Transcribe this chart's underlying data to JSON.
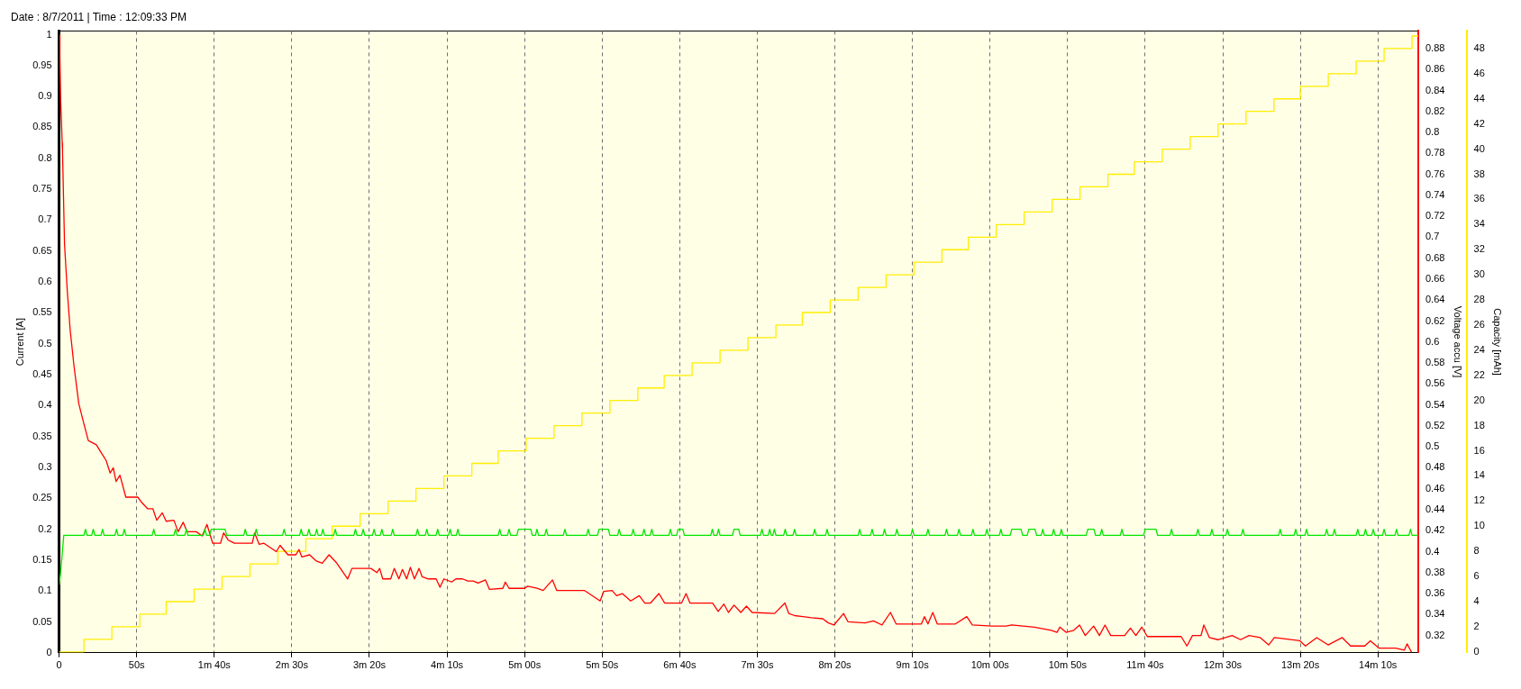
{
  "chart_data": {
    "type": "line",
    "title": "Date : 8/7/2011 | Time : 12:09:33 PM",
    "ylabel": "Current [A]",
    "y2label": "Voltage accu [V]",
    "y3label": "Capacity [mAh]",
    "xlim": [
      0,
      876
    ],
    "xticks": [
      {
        "value": 0,
        "label": "0"
      },
      {
        "value": 50,
        "label": "50s"
      },
      {
        "value": 100,
        "label": "1m 40s"
      },
      {
        "value": 150,
        "label": "2m 30s"
      },
      {
        "value": 200,
        "label": "3m 20s"
      },
      {
        "value": 250,
        "label": "4m 10s"
      },
      {
        "value": 300,
        "label": "5m 00s"
      },
      {
        "value": 350,
        "label": "5m 50s"
      },
      {
        "value": 400,
        "label": "6m 40s"
      },
      {
        "value": 450,
        "label": "7m 30s"
      },
      {
        "value": 500,
        "label": "8m 20s"
      },
      {
        "value": 550,
        "label": "9m 10s"
      },
      {
        "value": 600,
        "label": "10m 00s"
      },
      {
        "value": 650,
        "label": "10m 50s"
      },
      {
        "value": 700,
        "label": "11m 40s"
      },
      {
        "value": 750,
        "label": "12m 30s"
      },
      {
        "value": 800,
        "label": "13m 20s"
      },
      {
        "value": 850,
        "label": "14m 10s"
      }
    ],
    "ylim": [
      0,
      1.006
    ],
    "yticks": [
      0,
      0.05,
      0.1,
      0.15,
      0.2,
      0.25,
      0.3,
      0.35,
      0.4,
      0.45,
      0.5,
      0.55,
      0.6,
      0.65,
      0.7,
      0.75,
      0.8,
      0.85,
      0.9,
      0.95,
      1
    ],
    "y2lim": [
      0.3035,
      0.8968
    ],
    "y2ticks": [
      0.32,
      0.34,
      0.36,
      0.38,
      0.4,
      0.42,
      0.44,
      0.46,
      0.48,
      0.5,
      0.52,
      0.54,
      0.56,
      0.58,
      0.6,
      0.62,
      0.64,
      0.66,
      0.68,
      0.7,
      0.72,
      0.74,
      0.76,
      0.78,
      0.8,
      0.82,
      0.84,
      0.86,
      0.88
    ],
    "y3lim": [
      -0.07,
      49.4
    ],
    "y3ticks": [
      0,
      2,
      4,
      6,
      8,
      10,
      12,
      14,
      16,
      18,
      20,
      22,
      24,
      26,
      28,
      30,
      32,
      34,
      36,
      38,
      40,
      42,
      44,
      46,
      48
    ],
    "grid": "x",
    "marker": "none",
    "line_style": "solid",
    "series": [
      {
        "type": "line",
        "color": "#00e600",
        "x": [
          0,
          1,
          3,
          16,
          17,
          18,
          21,
          22,
          23,
          27,
          28,
          29,
          36,
          37,
          38,
          41,
          42,
          43,
          60,
          61,
          62,
          74,
          75,
          76,
          81,
          82,
          83,
          93,
          94,
          95,
          97,
          98,
          107,
          108,
          119,
          120,
          121,
          126,
          127,
          128,
          144,
          145,
          146,
          155,
          156,
          157,
          160,
          161,
          162,
          165,
          166,
          167,
          169,
          170,
          171,
          177,
          178,
          179,
          190,
          191,
          192,
          195,
          196,
          197,
          202,
          203,
          204,
          207,
          208,
          209,
          214,
          215,
          216,
          230,
          231,
          232,
          236,
          237,
          238,
          243,
          244,
          245,
          251,
          252,
          253,
          256,
          257,
          258,
          283,
          284,
          285,
          289,
          290,
          291,
          295,
          296,
          304,
          305,
          307,
          308,
          309,
          313,
          314,
          315,
          325,
          326,
          327,
          340,
          341,
          342,
          347,
          348,
          354,
          355,
          360,
          361,
          362,
          369,
          370,
          371,
          376,
          377,
          378,
          381,
          382,
          383,
          393,
          394,
          395,
          398,
          399,
          402,
          403,
          420,
          421,
          422,
          424,
          425,
          426,
          434,
          435,
          438,
          439,
          452,
          453,
          454,
          457,
          458,
          459,
          460,
          461,
          462,
          467,
          468,
          469,
          473,
          474,
          475,
          486,
          487,
          488,
          494,
          495,
          496,
          515,
          516,
          517,
          523,
          524,
          525,
          531,
          532,
          533,
          539,
          540,
          541,
          549,
          550,
          551,
          559,
          560,
          561,
          571,
          572,
          573,
          579,
          580,
          581,
          588,
          589,
          590,
          597,
          598,
          599,
          606,
          607,
          608,
          613,
          614,
          620,
          621,
          624,
          625,
          629,
          630,
          633,
          634,
          635,
          640,
          641,
          642,
          645,
          646,
          647,
          662,
          663,
          667,
          668,
          671,
          672,
          673,
          684,
          685,
          686,
          699,
          700,
          707,
          708,
          716,
          717,
          718,
          733,
          734,
          735,
          742,
          743,
          744,
          752,
          753,
          754,
          762,
          763,
          764,
          786,
          787,
          788,
          796,
          797,
          798,
          803,
          804,
          805,
          816,
          817,
          818,
          821,
          822,
          823,
          836,
          837,
          838,
          841,
          842,
          843,
          846,
          847,
          848,
          853,
          854,
          855,
          861,
          862,
          863,
          870,
          871,
          872,
          876
        ],
        "values": [
          0.11,
          0.13,
          0.19,
          0.19,
          0.2,
          0.19,
          0.19,
          0.2,
          0.19,
          0.19,
          0.2,
          0.19,
          0.19,
          0.2,
          0.19,
          0.19,
          0.2,
          0.19,
          0.19,
          0.2,
          0.19,
          0.19,
          0.2,
          0.19,
          0.19,
          0.2,
          0.19,
          0.19,
          0.2,
          0.19,
          0.19,
          0.2,
          0.2,
          0.19,
          0.19,
          0.2,
          0.19,
          0.19,
          0.2,
          0.19,
          0.19,
          0.2,
          0.19,
          0.19,
          0.2,
          0.19,
          0.19,
          0.2,
          0.19,
          0.19,
          0.2,
          0.19,
          0.19,
          0.2,
          0.19,
          0.19,
          0.2,
          0.19,
          0.19,
          0.2,
          0.19,
          0.19,
          0.2,
          0.19,
          0.19,
          0.2,
          0.19,
          0.19,
          0.2,
          0.19,
          0.19,
          0.2,
          0.19,
          0.19,
          0.2,
          0.19,
          0.19,
          0.2,
          0.19,
          0.19,
          0.2,
          0.19,
          0.19,
          0.2,
          0.19,
          0.19,
          0.2,
          0.19,
          0.19,
          0.2,
          0.19,
          0.19,
          0.2,
          0.19,
          0.19,
          0.2,
          0.2,
          0.19,
          0.19,
          0.2,
          0.19,
          0.19,
          0.2,
          0.19,
          0.19,
          0.2,
          0.19,
          0.19,
          0.2,
          0.19,
          0.19,
          0.2,
          0.2,
          0.19,
          0.19,
          0.2,
          0.19,
          0.19,
          0.2,
          0.19,
          0.19,
          0.2,
          0.19,
          0.19,
          0.2,
          0.19,
          0.19,
          0.2,
          0.19,
          0.19,
          0.2,
          0.2,
          0.19,
          0.19,
          0.2,
          0.19,
          0.19,
          0.2,
          0.19,
          0.19,
          0.2,
          0.2,
          0.19,
          0.19,
          0.2,
          0.19,
          0.19,
          0.2,
          0.19,
          0.19,
          0.2,
          0.19,
          0.19,
          0.2,
          0.19,
          0.19,
          0.2,
          0.19,
          0.19,
          0.2,
          0.19,
          0.19,
          0.2,
          0.19,
          0.19,
          0.2,
          0.19,
          0.19,
          0.2,
          0.19,
          0.19,
          0.2,
          0.19,
          0.19,
          0.2,
          0.19,
          0.19,
          0.2,
          0.19,
          0.19,
          0.2,
          0.19,
          0.19,
          0.2,
          0.19,
          0.19,
          0.2,
          0.19,
          0.19,
          0.2,
          0.19,
          0.19,
          0.2,
          0.19,
          0.19,
          0.2,
          0.19,
          0.19,
          0.2,
          0.2,
          0.19,
          0.19,
          0.2,
          0.2,
          0.19,
          0.19,
          0.2,
          0.19,
          0.19,
          0.2,
          0.19,
          0.19,
          0.2,
          0.19,
          0.19,
          0.2,
          0.2,
          0.19,
          0.19,
          0.2,
          0.19,
          0.19,
          0.2,
          0.19,
          0.19,
          0.2,
          0.2,
          0.19,
          0.19,
          0.2,
          0.19,
          0.19,
          0.2,
          0.19,
          0.19,
          0.2,
          0.19,
          0.19,
          0.2,
          0.19,
          0.19,
          0.2,
          0.19,
          0.19,
          0.2,
          0.19,
          0.19,
          0.2,
          0.19,
          0.19,
          0.2,
          0.19,
          0.19,
          0.2,
          0.19,
          0.19,
          0.2,
          0.19,
          0.19,
          0.2,
          0.19,
          0.19,
          0.2,
          0.19,
          0.19,
          0.2,
          0.19,
          0.19,
          0.2,
          0.19,
          0.19,
          0.2,
          0.19,
          0.19,
          0.2,
          0.19,
          0.19
        ]
      },
      {
        "type": "line",
        "axis": "y2",
        "color": "#ff0000",
        "x": [
          0.3,
          0.5,
          1,
          2,
          2.2,
          3.5,
          5.3,
          7.1,
          9.6,
          12.7,
          15.8,
          18.8,
          24,
          26.5,
          30.3,
          32.9,
          34.9,
          36.7,
          39.2,
          43,
          50.7,
          53.2,
          57,
          60.4,
          62.9,
          66.5,
          69,
          74,
          76.7,
          80,
          82.5,
          88.4,
          92.2,
          95.3,
          99,
          104,
          106,
          109,
          113,
          124.5,
          126,
          128.9,
          132,
          140,
          142.4,
          147.5,
          152.6,
          154.6,
          156.4,
          161.5,
          165.8,
          169.6,
          174,
          179,
          186,
          188.7,
          201,
          204.8,
          206.6,
          208.6,
          213.7,
          216,
          219,
          221.3,
          224,
          226.4,
          229,
          232,
          234,
          238,
          243,
          245.5,
          248,
          253,
          255.7,
          260,
          263.4,
          267,
          270,
          274.8,
          277.4,
          286,
          287.6,
          290,
          300,
          302,
          308,
          312,
          318,
          320.7,
          338.5,
          348.7,
          351,
          356.4,
          359.3,
          363,
          368.4,
          373.9,
          377.5,
          381.2,
          386.6,
          390.3,
          401.2,
          404.1,
          406.6,
          421.2,
          424.8,
          428.5,
          431.4,
          435,
          439.4,
          443,
          446.7,
          461.2,
          467.8,
          470.3,
          474,
          479.4,
          484.9,
          492.2,
          495.8,
          499.4,
          505.6,
          508.5,
          519.5,
          524.9,
          530.4,
          535.8,
          539.5,
          555.8,
          557.7,
          560,
          563.1,
          566,
          577.7,
          585,
          588.6,
          601.3,
          610.4,
          614,
          628.6,
          639.5,
          643.2,
          645,
          649,
          654,
          657.7,
          661.4,
          666.8,
          670.5,
          674.1,
          677.8,
          686.8,
          690.5,
          694,
          697.8,
          701.4,
          723.2,
          726.9,
          730.5,
          736,
          737.8,
          741.4,
          746.9,
          756,
          761.5,
          766.9,
          774.2,
          779.6,
          783.3,
          799.7,
          803.3,
          810.6,
          817.9,
          827,
          832.4,
          841.5,
          845.1,
          850.6,
          861.5,
          867,
          868.8,
          871.7
        ],
        "values": [
          0.893,
          0.872,
          0.831,
          0.79,
          0.781,
          0.693,
          0.648,
          0.612,
          0.577,
          0.541,
          0.523,
          0.506,
          0.502,
          0.496,
          0.487,
          0.475,
          0.48,
          0.467,
          0.473,
          0.452,
          0.452,
          0.447,
          0.441,
          0.441,
          0.43,
          0.437,
          0.429,
          0.43,
          0.419,
          0.428,
          0.419,
          0.419,
          0.415,
          0.426,
          0.408,
          0.408,
          0.418,
          0.411,
          0.408,
          0.408,
          0.418,
          0.407,
          0.408,
          0.4,
          0.406,
          0.397,
          0.397,
          0.402,
          0.395,
          0.397,
          0.391,
          0.389,
          0.397,
          0.389,
          0.374,
          0.384,
          0.384,
          0.38,
          0.384,
          0.374,
          0.374,
          0.384,
          0.374,
          0.383,
          0.374,
          0.385,
          0.374,
          0.384,
          0.376,
          0.374,
          0.374,
          0.366,
          0.374,
          0.371,
          0.374,
          0.374,
          0.372,
          0.372,
          0.37,
          0.373,
          0.364,
          0.365,
          0.371,
          0.365,
          0.365,
          0.367,
          0.365,
          0.363,
          0.373,
          0.363,
          0.363,
          0.353,
          0.362,
          0.363,
          0.358,
          0.36,
          0.353,
          0.358,
          0.351,
          0.351,
          0.36,
          0.351,
          0.351,
          0.36,
          0.351,
          0.351,
          0.343,
          0.35,
          0.342,
          0.349,
          0.342,
          0.348,
          0.342,
          0.341,
          0.351,
          0.341,
          0.339,
          0.338,
          0.337,
          0.336,
          0.332,
          0.33,
          0.341,
          0.333,
          0.332,
          0.334,
          0.33,
          0.342,
          0.331,
          0.331,
          0.338,
          0.331,
          0.342,
          0.331,
          0.331,
          0.338,
          0.33,
          0.329,
          0.329,
          0.33,
          0.328,
          0.325,
          0.323,
          0.328,
          0.323,
          0.325,
          0.33,
          0.32,
          0.329,
          0.32,
          0.33,
          0.32,
          0.32,
          0.327,
          0.32,
          0.328,
          0.319,
          0.319,
          0.31,
          0.32,
          0.32,
          0.33,
          0.318,
          0.316,
          0.32,
          0.316,
          0.32,
          0.318,
          0.311,
          0.318,
          0.315,
          0.31,
          0.318,
          0.311,
          0.318,
          0.31,
          0.31,
          0.315,
          0.308,
          0.308,
          0.306,
          0.312,
          0.304
        ]
      },
      {
        "type": "step",
        "axis": "y3",
        "color": "#ffee00",
        "x": [
          0,
          16,
          34,
          52,
          69,
          87,
          105,
          123,
          141,
          159,
          176,
          194,
          212,
          230,
          248,
          266,
          283,
          301,
          319,
          337,
          355,
          373,
          390,
          408,
          426,
          444,
          462,
          479,
          497,
          515,
          533,
          551,
          569,
          586,
          604,
          622,
          640,
          658,
          676,
          693,
          711,
          729,
          747,
          765,
          783,
          800,
          818,
          836,
          854,
          872,
          876
        ],
        "values": [
          0,
          1,
          2,
          3,
          4,
          5,
          6,
          7,
          8,
          9,
          10,
          11,
          12,
          13,
          14,
          15,
          16,
          17,
          18,
          19,
          20,
          21,
          22,
          23,
          24,
          25,
          26,
          27,
          28,
          29,
          30,
          31,
          32,
          33,
          34,
          35,
          36,
          37,
          38,
          39,
          40,
          41,
          42,
          43,
          44,
          45,
          46,
          47,
          48,
          49,
          49
        ]
      }
    ]
  }
}
